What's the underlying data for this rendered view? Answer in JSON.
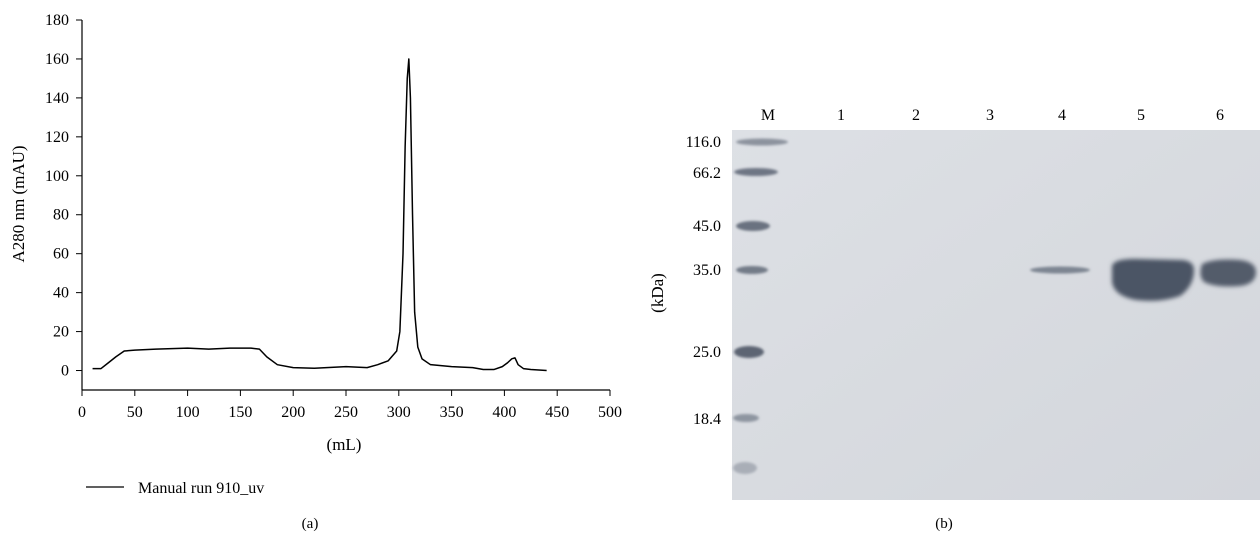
{
  "figure": {
    "panel_a_label": "(a)",
    "panel_b_label": "(b)"
  },
  "chart_data": [
    {
      "type": "line",
      "panel": "(a)",
      "xlabel": "(mL)",
      "ylabel": "A280 nm (mAU)",
      "xlim": [
        0,
        500
      ],
      "ylim": [
        -10,
        180
      ],
      "x_ticks": [
        0,
        50,
        100,
        150,
        200,
        250,
        300,
        350,
        400,
        450,
        500
      ],
      "y_ticks": [
        0,
        20,
        40,
        60,
        80,
        100,
        120,
        140,
        160,
        180
      ],
      "grid": false,
      "legend_position": "bottom-left",
      "series": [
        {
          "name": "Manual run 910_uv",
          "color": "#000000",
          "x": [
            10,
            18,
            25,
            32,
            40,
            50,
            70,
            100,
            120,
            140,
            160,
            168,
            175,
            185,
            200,
            220,
            250,
            270,
            280,
            290,
            298,
            301,
            304,
            306,
            308,
            309.5,
            311,
            313,
            315,
            318,
            322,
            330,
            350,
            370,
            380,
            390,
            398,
            403,
            407,
            410,
            413,
            418,
            425,
            440
          ],
          "y": [
            1,
            1,
            4,
            7,
            10,
            10.5,
            11,
            11.5,
            11,
            11.5,
            11.5,
            11,
            7,
            3,
            1.5,
            1.2,
            2,
            1.5,
            3,
            5,
            10,
            20,
            60,
            115,
            150,
            160,
            140,
            80,
            30,
            12,
            6,
            3,
            2,
            1.5,
            0.5,
            0.5,
            2,
            4,
            6,
            6.5,
            3,
            1,
            0.5,
            0
          ]
        }
      ]
    },
    {
      "type": "table",
      "panel": "(b)",
      "ylabel": "(kDa)",
      "lanes": [
        "M",
        "1",
        "2",
        "3",
        "4",
        "5",
        "6"
      ],
      "marker_values": [
        "116.0",
        "66.2",
        "45.0",
        "35.0",
        "25.0",
        "18.4"
      ],
      "colors": {
        "gel_background": "#d9dce1",
        "band": "#4b5565"
      }
    }
  ]
}
